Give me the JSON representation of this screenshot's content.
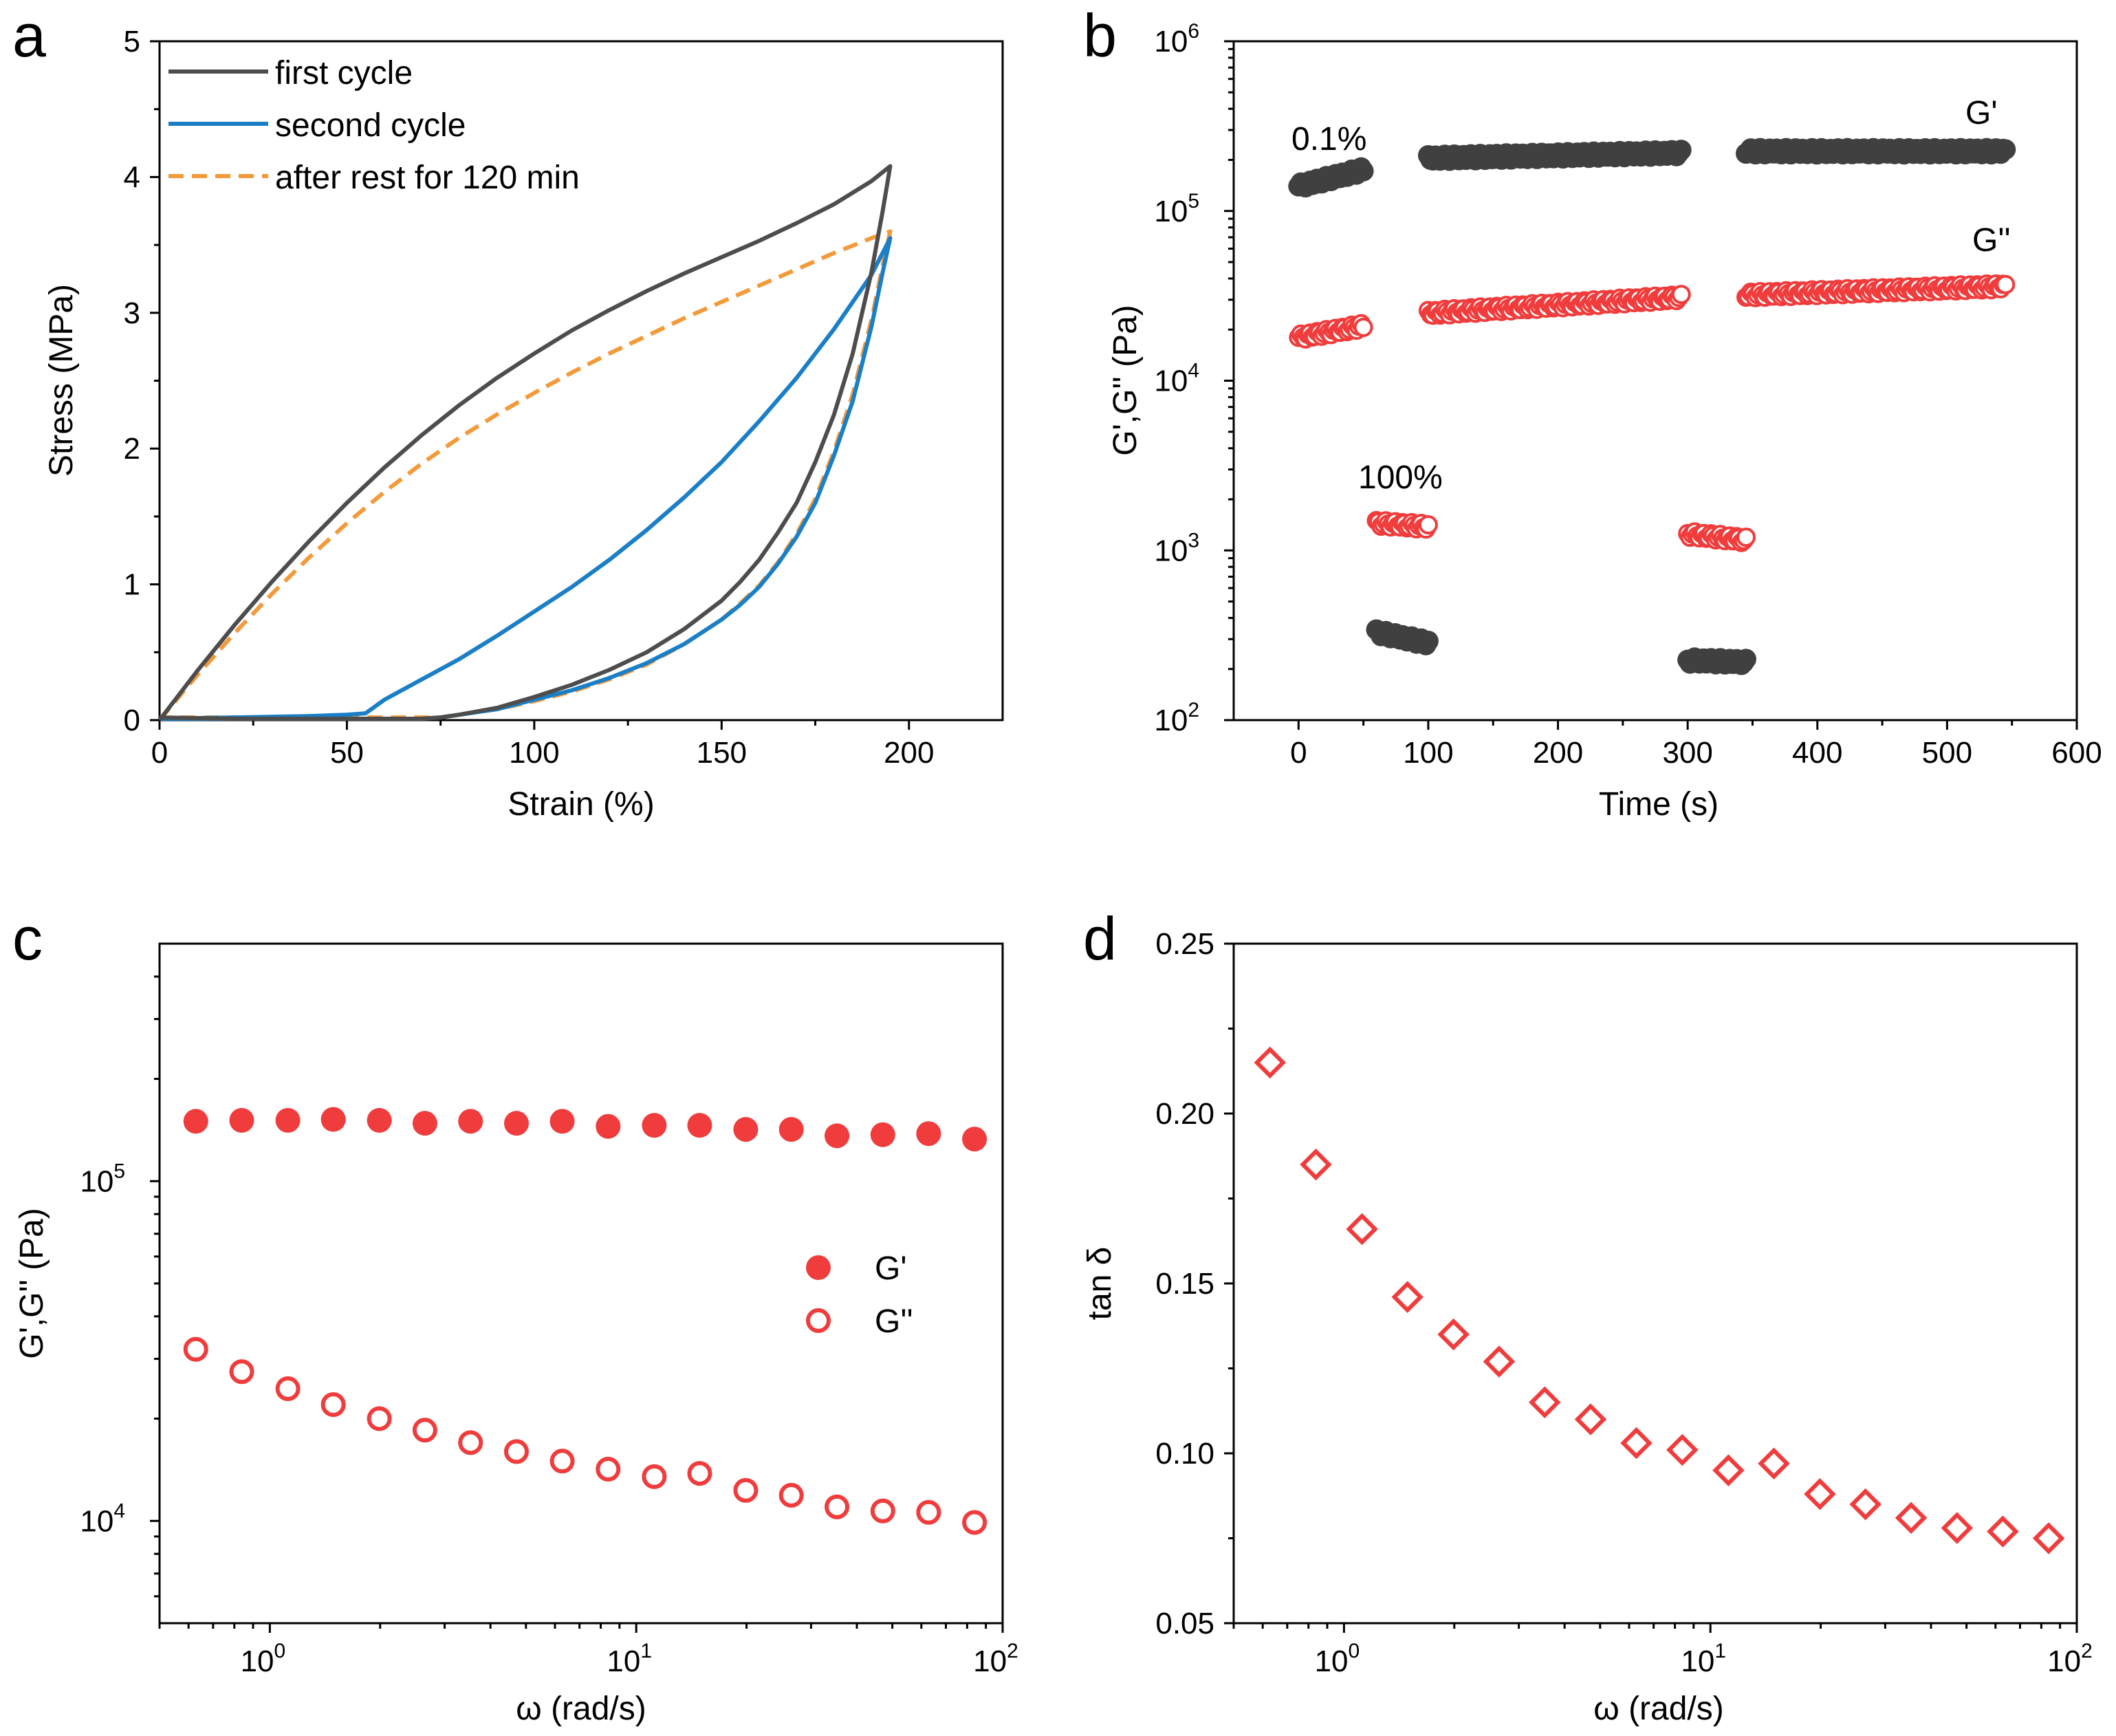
{
  "panels": {
    "a": "a",
    "b": "b",
    "c": "c",
    "d": "d"
  },
  "colors": {
    "first": "#4d4d4d",
    "second": "#1a7fc6",
    "rest": "#f39a3b",
    "red": "#f03c3c",
    "dark": "#404040"
  },
  "chart_data": [
    {
      "id": "a",
      "type": "line",
      "xlabel": "Strain (%)",
      "ylabel": "Stress (MPa)",
      "xlim": [
        0,
        225
      ],
      "ylim": [
        0,
        5
      ],
      "xticks": [
        0,
        50,
        100,
        150,
        200
      ],
      "yticks": [
        0,
        1,
        2,
        3,
        4,
        5
      ],
      "legend_position": "top-left",
      "series": [
        {
          "name": "first cycle",
          "style": "solid",
          "color": "#4d4d4d",
          "x": [
            0,
            10,
            20,
            30,
            40,
            50,
            60,
            70,
            80,
            90,
            100,
            110,
            120,
            130,
            140,
            150,
            160,
            170,
            180,
            190,
            195,
            193,
            190,
            185,
            180,
            175,
            170,
            165,
            160,
            155,
            150,
            140,
            130,
            120,
            110,
            100,
            90,
            80,
            75,
            70,
            50,
            20,
            0
          ],
          "y": [
            0,
            0.36,
            0.7,
            1.02,
            1.32,
            1.6,
            1.86,
            2.1,
            2.32,
            2.52,
            2.7,
            2.87,
            3.02,
            3.16,
            3.29,
            3.41,
            3.53,
            3.66,
            3.8,
            3.97,
            4.08,
            3.75,
            3.3,
            2.7,
            2.25,
            1.9,
            1.6,
            1.38,
            1.18,
            1.02,
            0.88,
            0.67,
            0.5,
            0.37,
            0.26,
            0.17,
            0.09,
            0.04,
            0.02,
            0.01,
            0.01,
            0.01,
            0.02
          ]
        },
        {
          "name": "second cycle",
          "style": "solid",
          "color": "#1a7fc6",
          "x": [
            0,
            20,
            40,
            50,
            55,
            60,
            70,
            80,
            90,
            100,
            110,
            120,
            130,
            140,
            150,
            160,
            170,
            180,
            190,
            195,
            193,
            190,
            185,
            180,
            175,
            170,
            165,
            160,
            155,
            150,
            140,
            130,
            120,
            110,
            100,
            90,
            80,
            75,
            70,
            50,
            20,
            0
          ],
          "y": [
            0.01,
            0.02,
            0.03,
            0.04,
            0.05,
            0.15,
            0.3,
            0.45,
            0.62,
            0.8,
            0.98,
            1.18,
            1.4,
            1.64,
            1.9,
            2.2,
            2.52,
            2.88,
            3.28,
            3.55,
            3.3,
            2.9,
            2.35,
            1.95,
            1.6,
            1.35,
            1.15,
            0.98,
            0.85,
            0.74,
            0.56,
            0.42,
            0.31,
            0.22,
            0.15,
            0.08,
            0.04,
            0.02,
            0.01,
            0.01,
            0.01,
            0.01
          ]
        },
        {
          "name": "after rest for 120 min",
          "style": "dashed",
          "color": "#f39a3b",
          "x": [
            0,
            10,
            20,
            30,
            40,
            50,
            60,
            70,
            80,
            90,
            100,
            110,
            120,
            130,
            140,
            150,
            160,
            170,
            180,
            190,
            195,
            193,
            190,
            185,
            180,
            175,
            170,
            165,
            160,
            155,
            150,
            140,
            130,
            120,
            110,
            100,
            90,
            80,
            75,
            70,
            50,
            20,
            0
          ],
          "y": [
            0,
            0.33,
            0.64,
            0.93,
            1.2,
            1.45,
            1.68,
            1.89,
            2.08,
            2.25,
            2.41,
            2.56,
            2.7,
            2.83,
            2.96,
            3.08,
            3.2,
            3.32,
            3.44,
            3.55,
            3.6,
            3.35,
            2.95,
            2.4,
            1.98,
            1.63,
            1.37,
            1.16,
            0.99,
            0.86,
            0.74,
            0.56,
            0.41,
            0.3,
            0.21,
            0.14,
            0.08,
            0.04,
            0.02,
            0.02,
            0.02,
            0.02,
            0.02
          ]
        }
      ]
    },
    {
      "id": "b",
      "type": "scatter",
      "xlabel": "Time (s)",
      "ylabel": "G',G'' (Pa)",
      "xlim": [
        -50,
        600
      ],
      "xticks": [
        0,
        100,
        200,
        300,
        400,
        500,
        600
      ],
      "yscale": "log",
      "ylim": [
        100,
        1000000
      ],
      "yticks": [
        {
          "base": "10",
          "exp": "2"
        },
        {
          "base": "10",
          "exp": "3"
        },
        {
          "base": "10",
          "exp": "4"
        },
        {
          "base": "10",
          "exp": "5"
        },
        {
          "base": "10",
          "exp": "6"
        }
      ],
      "annotations": [
        "0.1%",
        "100%",
        "G'",
        "G''"
      ],
      "series": [
        {
          "name": "G'",
          "marker": "filled-circle",
          "color": "#404040",
          "segments": [
            {
              "x0": 0,
              "x1": 50,
              "y0": 140000,
              "y1": 175000
            },
            {
              "x0": 60,
              "x1": 100,
              "y0": 330,
              "y1": 285
            },
            {
              "x0": 100,
              "x1": 295,
              "y0": 205000,
              "y1": 220000
            },
            {
              "x0": 300,
              "x1": 345,
              "y0": 225,
              "y1": 220
            },
            {
              "x0": 345,
              "x1": 545,
              "y0": 225000,
              "y1": 225000
            }
          ]
        },
        {
          "name": "G''",
          "marker": "open-circle",
          "color": "#f03c3c",
          "segments": [
            {
              "x0": 0,
              "x1": 50,
              "y0": 18000,
              "y1": 21000
            },
            {
              "x0": 60,
              "x1": 100,
              "y0": 1450,
              "y1": 1380
            },
            {
              "x0": 100,
              "x1": 295,
              "y0": 25000,
              "y1": 31000
            },
            {
              "x0": 300,
              "x1": 345,
              "y0": 1250,
              "y1": 1150
            },
            {
              "x0": 345,
              "x1": 545,
              "y0": 32000,
              "y1": 36000
            }
          ]
        }
      ]
    },
    {
      "id": "c",
      "type": "scatter",
      "xlabel": "ω (rad/s)",
      "ylabel": "G',G'' (Pa)",
      "xscale": "log",
      "yscale": "log",
      "xlim": [
        0.5,
        100
      ],
      "ylim": [
        5000,
        500000
      ],
      "xticks": [
        {
          "base": "10",
          "exp": "0"
        },
        {
          "base": "10",
          "exp": "1"
        },
        {
          "base": "10",
          "exp": "2"
        }
      ],
      "yticks": [
        {
          "base": "10",
          "exp": "4"
        },
        {
          "base": "10",
          "exp": "5"
        }
      ],
      "legend_position": "center-right",
      "x": [
        0.628,
        0.838,
        1.12,
        1.49,
        1.99,
        2.65,
        3.53,
        4.71,
        6.28,
        8.38,
        11.2,
        14.9,
        19.9,
        26.5,
        35.3,
        47.1,
        62.8,
        83.8
      ],
      "series": [
        {
          "name": "G'",
          "marker": "filled-circle",
          "color": "#f03c3c",
          "values": [
            150000,
            151000,
            151000,
            152000,
            151000,
            148000,
            150000,
            148000,
            150000,
            145000,
            146000,
            146000,
            142000,
            142000,
            136000,
            137000,
            138000,
            133000
          ]
        },
        {
          "name": "G''",
          "marker": "open-circle",
          "color": "#f03c3c",
          "values": [
            32000,
            27500,
            24500,
            22000,
            20000,
            18500,
            17000,
            16000,
            15000,
            14200,
            13500,
            13800,
            12300,
            11900,
            11000,
            10700,
            10600,
            9900
          ]
        }
      ]
    },
    {
      "id": "d",
      "type": "scatter",
      "xlabel": "ω (rad/s)",
      "ylabel": "tan δ",
      "xscale": "log",
      "xlim": [
        0.5,
        100
      ],
      "ylim": [
        0.05,
        0.25
      ],
      "xticks": [
        {
          "base": "10",
          "exp": "0"
        },
        {
          "base": "10",
          "exp": "1"
        },
        {
          "base": "10",
          "exp": "2"
        }
      ],
      "yticks": [
        "0.05",
        "0.10",
        "0.15",
        "0.20",
        "0.25"
      ],
      "series": [
        {
          "name": "tan δ",
          "marker": "open-diamond",
          "color": "#f03c3c",
          "x": [
            0.628,
            0.838,
            1.12,
            1.49,
            1.99,
            2.65,
            3.53,
            4.71,
            6.28,
            8.38,
            11.2,
            14.9,
            19.9,
            26.5,
            35.3,
            47.1,
            62.8,
            83.8
          ],
          "values": [
            0.215,
            0.185,
            0.166,
            0.146,
            0.135,
            0.127,
            0.115,
            0.11,
            0.103,
            0.101,
            0.095,
            0.097,
            0.088,
            0.085,
            0.081,
            0.078,
            0.077,
            0.075
          ]
        }
      ]
    }
  ]
}
